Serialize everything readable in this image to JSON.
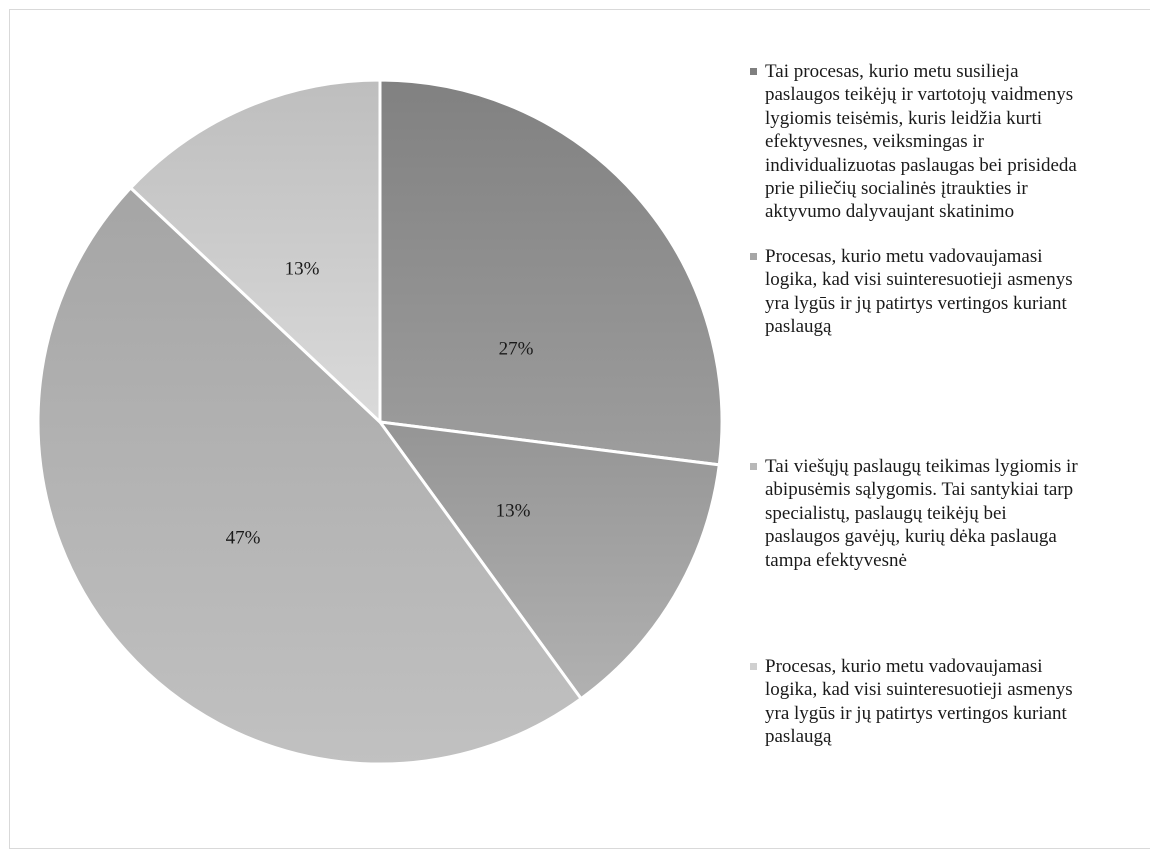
{
  "chart_data": {
    "type": "pie",
    "title": "",
    "slices": [
      {
        "label": "Tai procesas, kurio metu susilieja paslaugos teikėjų ir vartotojų vaidmenys lygiomis teisėmis, kuris leidžia kurti efektyvesnes, veiksmingas ir individualizuotas paslaugas bei prisideda prie piliečių socialinės įtraukties ir aktyvumo dalyvaujant skatinimo",
        "value": 27,
        "value_label": "27%",
        "color": "#8f8f8f"
      },
      {
        "label": "Procesas, kurio metu vadovaujamasi logika, kad visi suinteresuotieji asmenys yra lygūs ir jų patirtys vertingos kuriant paslaugą",
        "value": 13,
        "value_label": "13%",
        "color": "#a3a3a3"
      },
      {
        "label": "Tai viešųjų paslaugų teikimas lygiomis ir abipusėmis sąlygomis. Tai santykiai tarp specialistų, paslaugų teikėjų bei paslaugos gavėjų, kurių dėka paslauga tampa efektyvesnė",
        "value": 47,
        "value_label": "47%",
        "color": "#b3b3b3"
      },
      {
        "label": "Procesas, kurio metu vadovaujamasi logika, kad visi suinteresuotieji asmenys yra lygūs ir jų patirtys vertingos kuriant paslaugą",
        "value": 13,
        "value_label": "13%",
        "color": "#cccccc"
      }
    ],
    "legend_position": "right"
  },
  "legend": {
    "items": [
      {
        "text": "Tai procesas, kurio metu susilieja\npaslaugos teikėjų ir vartotojų vaidmenys\nlygiomis teisėmis, kuris leidžia kurti\nefektyvesnes, veiksmingas ir\nindividualizuotas paslaugas bei prisideda\nprie piliečių socialinės įtraukties ir\naktyvumo dalyvaujant skatinimo",
        "color": "#7f7f7f"
      },
      {
        "text": "Procesas, kurio metu  vadovaujamasi\nlogika, kad visi suinteresuotieji asmenys\nyra lygūs ir jų patirtys vertingos kuriant\npaslaugą",
        "color": "#a6a6a6"
      },
      {
        "text": "Tai viešųjų paslaugų teikimas lygiomis ir\nabipusėmis sąlygomis. Tai santykiai tarp\nspecialistų, paslaugų teikėjų  bei\npaslaugos gavėjų, kurių dėka  paslauga\ntampa efektyvesnė",
        "color": "#b8b8b8"
      },
      {
        "text": "Procesas, kurio metu  vadovaujamasi\nlogika, kad visi suinteresuotieji asmenys\nyra lygūs ir jų patirtys vertingos kuriant\npaslaugą",
        "color": "#d0d0d0"
      }
    ]
  }
}
